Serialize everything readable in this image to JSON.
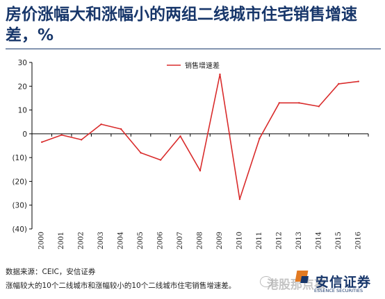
{
  "header": {
    "title": "房价涨幅大和涨幅小的两组二线城市住宅销售增速差，%"
  },
  "footer": {
    "source": "数据来源：CEIC，安信证券",
    "note": "涨幅较大的10个二线城市和涨幅较小的10个二线城市住宅销售增速差。"
  },
  "logo": {
    "icon": "wechat-icon",
    "overlay_text": "港股那点事",
    "name": "安信证券",
    "sub": "ESSENCE SECURITIES"
  },
  "colors": {
    "line": "#d92b2b",
    "title": "#17366a",
    "axis": "#000000"
  },
  "chart_data": {
    "type": "line",
    "title": "",
    "xlabel": "",
    "ylabel": "",
    "x": [
      "2000",
      "2001",
      "2002",
      "2003",
      "2004",
      "2005",
      "2006",
      "2007",
      "2008",
      "2009",
      "2010",
      "2011",
      "2012",
      "2013",
      "2014",
      "2015",
      "2016"
    ],
    "series": [
      {
        "name": "销售增速差",
        "values": [
          -3.5,
          -0.5,
          -2.5,
          4,
          2,
          -8,
          -11,
          -1,
          -15.5,
          25,
          -27.5,
          -2,
          13,
          13,
          11.5,
          21,
          22
        ]
      }
    ],
    "ylim": [
      -40,
      30
    ],
    "yticks": [
      30,
      20,
      10,
      0,
      -10,
      -20,
      -30,
      -40
    ],
    "ytick_labels": [
      "30",
      "20",
      "10",
      "0",
      "(10)",
      "(20)",
      "(30)",
      "(40)"
    ],
    "legend": "top-left",
    "grid": false
  }
}
